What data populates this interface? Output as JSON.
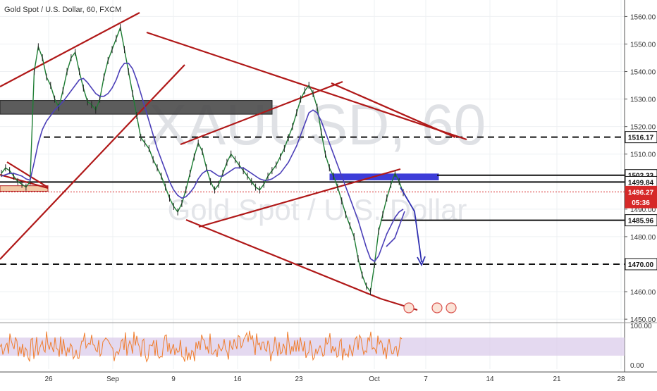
{
  "chart_data": {
    "type": "line",
    "title": "Gold Spot / U.S. Dollar, 60, FXCM",
    "watermark_symbol": "XAUUSD, 60",
    "watermark_name": "Gold Spot / U.S. Dollar",
    "y_ticks": [
      1450.0,
      1460.0,
      1470.0,
      1480.0,
      1490.0,
      1500.0,
      1510.0,
      1520.0,
      1530.0,
      1540.0,
      1550.0,
      1560.0
    ],
    "y_tick_labels": [
      "1450.00",
      "1460.00",
      "1470.00",
      "1480.00",
      "1490.00",
      "1500.00",
      "1510.00",
      "1520.00",
      "1530.00",
      "1540.00",
      "1550.00",
      "1560.00"
    ],
    "ylim": [
      1449,
      1566
    ],
    "x_tick_labels": [
      "26",
      "Sep",
      "9",
      "16",
      "23",
      "Oct",
      "7",
      "14",
      "21",
      "28"
    ],
    "grid": true,
    "price_badges": [
      {
        "label": "1516.17",
        "value": 1516.17,
        "style": "white"
      },
      {
        "label": "1502.33",
        "value": 1502.33,
        "style": "white"
      },
      {
        "label": "1499.84",
        "value": 1499.84,
        "style": "white"
      },
      {
        "label": "1496.27",
        "value": 1496.27,
        "style": "red"
      },
      {
        "label": "05:36",
        "value": 1492.5,
        "style": "red"
      },
      {
        "label": "1485.96",
        "value": 1485.96,
        "style": "white"
      },
      {
        "label": "1470.00",
        "value": 1470.0,
        "style": "white"
      }
    ],
    "horizontal_levels": [
      {
        "value": 1516.17,
        "style": "dashed"
      },
      {
        "value": 1502.33,
        "style": "solid"
      },
      {
        "value": 1499.84,
        "style": "solid"
      },
      {
        "value": 1496.27,
        "style": "dotted-red"
      },
      {
        "value": 1485.96,
        "style": "solid"
      },
      {
        "value": 1470.0,
        "style": "dashed"
      }
    ],
    "zones": [
      {
        "name": "grey-resistance-zone",
        "y_top": 1529.5,
        "y_bottom": 1524.5
      },
      {
        "name": "orange-support-zone",
        "y_top": 1498.5,
        "y_bottom": 1496.5
      },
      {
        "name": "blue-resistance-zone",
        "y_top": 1502.8,
        "y_bottom": 1500.6
      }
    ],
    "indicator": {
      "name": "RSI",
      "y_tick_labels": [
        "100.00",
        "0.00"
      ],
      "band": [
        30,
        70
      ]
    },
    "series": [
      {
        "name": "",
        "values": [
          1503,
          1505,
          1504,
          1502,
          1500,
          1499,
          1498,
          1500,
          1540,
          1549,
          1545,
          1538,
          1535,
          1530,
          1527,
          1533,
          1540,
          1545,
          1547,
          1540,
          1534,
          1529,
          1528,
          1526,
          1530,
          1538,
          1544,
          1548,
          1552,
          1556,
          1548,
          1540,
          1532,
          1524,
          1516,
          1514,
          1512,
          1508,
          1505,
          1502,
          1498,
          1494,
          1491,
          1489,
          1492,
          1497,
          1503,
          1509,
          1514,
          1511,
          1505,
          1500,
          1497,
          1499,
          1503,
          1507,
          1510,
          1508,
          1506,
          1504,
          1502,
          1500,
          1498,
          1497,
          1499,
          1502,
          1504,
          1506,
          1509,
          1512,
          1516,
          1520,
          1525,
          1530,
          1533,
          1535,
          1532,
          1527,
          1518,
          1510,
          1505,
          1502,
          1498,
          1493,
          1488,
          1484,
          1480,
          1472,
          1466,
          1462,
          1460,
          1470,
          1482,
          1488,
          1494,
          1499,
          1503,
          1500,
          1496
        ]
      },
      {
        "name": "",
        "values": [
          1502,
          1502.5,
          1503,
          1503,
          1502.5,
          1502,
          1501,
          1500.5,
          1507,
          1514,
          1519,
          1522,
          1524,
          1526,
          1527.5,
          1529,
          1531,
          1533,
          1535,
          1537,
          1537.5,
          1536,
          1534,
          1532,
          1531,
          1531,
          1532,
          1534,
          1537,
          1541,
          1543,
          1543,
          1541,
          1537,
          1532,
          1527,
          1522,
          1517,
          1512,
          1508,
          1504,
          1500,
          1497,
          1495,
          1494,
          1494.5,
          1496,
          1498,
          1501,
          1503,
          1504,
          1504,
          1503,
          1502,
          1502,
          1503,
          1504,
          1505,
          1505,
          1505,
          1504,
          1503,
          1502,
          1501,
          1500.5,
          1500.5,
          1501,
          1502,
          1503,
          1505,
          1507,
          1510,
          1513,
          1517,
          1521,
          1525,
          1526,
          1525,
          1522,
          1518,
          1514,
          1510,
          1506,
          1502,
          1498,
          1494,
          1490,
          1486,
          1481,
          1476,
          1472,
          1471,
          1473,
          1477,
          1481,
          1484,
          1487,
          1489,
          1490
        ]
      }
    ]
  }
}
